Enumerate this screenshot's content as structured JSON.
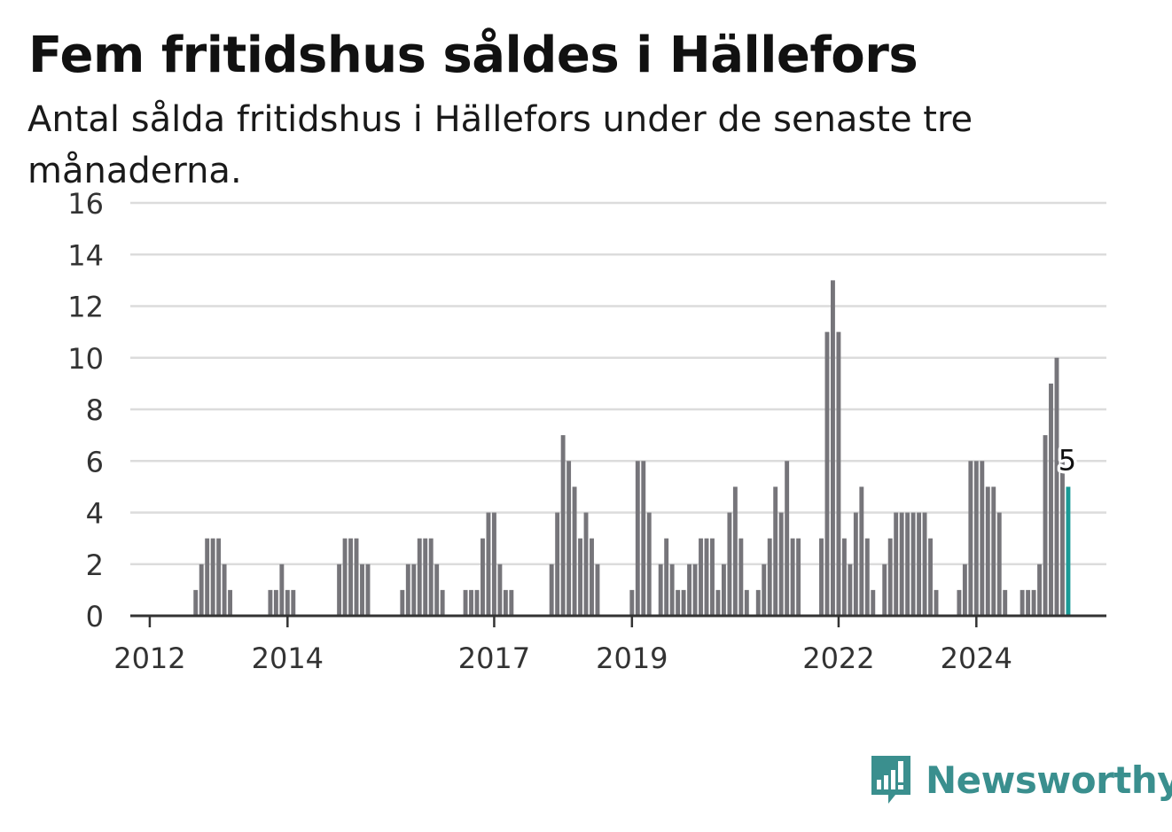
{
  "title": "Fem fritidshus såldes i Hällefors",
  "subtitle": "Antal sålda fritidshus i Hällefors under de senaste tre månaderna.",
  "brand": {
    "name": "Newsworthy"
  },
  "colors": {
    "bar": "#76757a",
    "highlight": "#1a9a96",
    "brand": "#3a8f8e",
    "grid": "#dcdcdc",
    "axis": "#333333"
  },
  "chart_data": {
    "type": "bar",
    "xlabel": "",
    "ylabel": "",
    "ylim": [
      0,
      16
    ],
    "yticks": [
      "0",
      "2",
      "4",
      "6",
      "8",
      "10",
      "12",
      "14",
      "16"
    ],
    "xticks": [
      "2012",
      "2014",
      "2017",
      "2019",
      "2022",
      "2024"
    ],
    "start_month": "2011-10",
    "values": [
      0,
      0,
      0,
      0,
      0,
      0,
      0,
      0,
      0,
      0,
      0,
      1,
      2,
      3,
      3,
      3,
      2,
      1,
      0,
      0,
      0,
      0,
      0,
      0,
      1,
      1,
      2,
      1,
      1,
      0,
      0,
      0,
      0,
      0,
      0,
      0,
      2,
      3,
      3,
      3,
      2,
      2,
      0,
      0,
      0,
      0,
      0,
      1,
      2,
      2,
      3,
      3,
      3,
      2,
      1,
      0,
      0,
      0,
      1,
      1,
      1,
      3,
      4,
      4,
      2,
      1,
      1,
      0,
      0,
      0,
      0,
      0,
      0,
      2,
      4,
      7,
      6,
      5,
      3,
      4,
      3,
      2,
      0,
      0,
      0,
      0,
      0,
      1,
      6,
      6,
      4,
      0,
      2,
      3,
      2,
      1,
      1,
      2,
      2,
      3,
      3,
      3,
      1,
      2,
      4,
      5,
      3,
      1,
      0,
      1,
      2,
      3,
      5,
      4,
      6,
      3,
      3,
      0,
      0,
      0,
      3,
      11,
      13,
      11,
      3,
      2,
      4,
      5,
      3,
      1,
      0,
      2,
      3,
      4,
      4,
      4,
      4,
      4,
      4,
      3,
      1,
      0,
      0,
      0,
      1,
      2,
      6,
      6,
      6,
      5,
      5,
      4,
      1,
      0,
      0,
      1,
      1,
      1,
      2,
      7,
      9,
      10,
      6,
      5
    ],
    "highlight_label": "5"
  }
}
